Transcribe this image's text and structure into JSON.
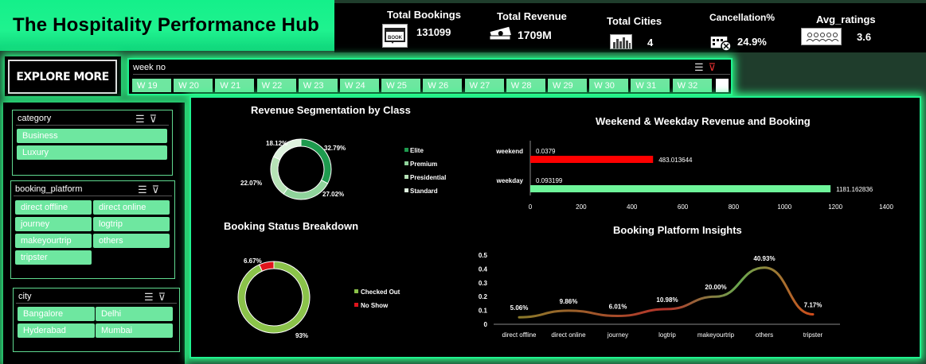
{
  "header": {
    "title": "The Hospitality Performance Hub"
  },
  "kpis": {
    "total_bookings": {
      "label": "Total Bookings",
      "value": "131099",
      "icon": "book-icon"
    },
    "total_revenue": {
      "label": "Total Revenue",
      "value": "1709M",
      "icon": "money-icon"
    },
    "total_cities": {
      "label": "Total Cities",
      "value": "4",
      "icon": "city-skyline-icon"
    },
    "cancellation": {
      "label": "Cancellation%",
      "value": "24.9%",
      "icon": "calendar-cancel-icon"
    },
    "avg_ratings": {
      "label": "Avg_ratings",
      "value": "3.6",
      "icon": "people-rating-icon"
    }
  },
  "explore": {
    "label": "EXPLORE MORE"
  },
  "week_slicer": {
    "label": "week no",
    "items": [
      "W 19",
      "W 20",
      "W 21",
      "W 22",
      "W 23",
      "W 24",
      "W 25",
      "W 26",
      "W 27",
      "W 28",
      "W 29",
      "W 30",
      "W 31",
      "W 32"
    ]
  },
  "category_slicer": {
    "label": "category",
    "items": [
      "Business",
      "Luxury"
    ]
  },
  "platform_slicer": {
    "label": "booking_platform",
    "items": [
      "direct offline",
      "direct online",
      "journey",
      "logtrip",
      "makeyourtrip",
      "others",
      "tripster"
    ]
  },
  "city_slicer": {
    "label": "city",
    "items": [
      "Bangalore",
      "Delhi",
      "Hyderabad",
      "Mumbai"
    ]
  },
  "colors": {
    "accent": "#1ff28f",
    "chip": "#6ee7a0",
    "weekend_bar": "#ff0000",
    "weekday_bar": "#6ef59a"
  },
  "chart_data": [
    {
      "type": "pie",
      "title": "Revenue Segmentation by Class",
      "categories": [
        "Elite",
        "Premium",
        "Presidential",
        "Standard"
      ],
      "values": [
        32.79,
        27.02,
        22.07,
        18.12
      ],
      "value_labels": [
        "32.79%",
        "27.02%",
        "22.07%",
        "18.12%"
      ],
      "legend": "right"
    },
    {
      "type": "bar",
      "title": "Weekend & Weekday Revenue and Booking",
      "orientation": "horizontal",
      "categories": [
        "weekend",
        "weekday"
      ],
      "series": [
        {
          "values": [
            0.0379,
            0.093199
          ]
        },
        {
          "values": [
            483.013644,
            1181.162836
          ]
        }
      ],
      "value_labels_booking": [
        "0.0379",
        "0.093199"
      ],
      "value_labels_revenue": [
        "483.013644",
        "1181.162836"
      ],
      "xlim": [
        0,
        1400
      ],
      "xticks": [
        "0",
        "200",
        "400",
        "600",
        "800",
        "1000",
        "1200",
        "1400"
      ]
    },
    {
      "type": "pie",
      "title": "Booking Status Breakdown",
      "categories": [
        "Checked Out",
        "No Show"
      ],
      "values": [
        93,
        6.67
      ],
      "value_labels": [
        "93%",
        "6.67%"
      ],
      "legend": "right"
    },
    {
      "type": "line",
      "title": "Booking Platform Insights",
      "categories": [
        "direct offline",
        "direct online",
        "journey",
        "logtrip",
        "makeyourtrip",
        "others",
        "tripster"
      ],
      "values": [
        0.0506,
        0.0986,
        0.0601,
        0.1098,
        0.2,
        0.4093,
        0.0717
      ],
      "value_labels": [
        "5.06%",
        "9.86%",
        "6.01%",
        "10.98%",
        "20.00%",
        "40.93%",
        "7.17%"
      ],
      "ylim": [
        0,
        0.5
      ],
      "yticks": [
        "0",
        "0.1",
        "0.2",
        "0.3",
        "0.4",
        "0.5"
      ]
    }
  ]
}
